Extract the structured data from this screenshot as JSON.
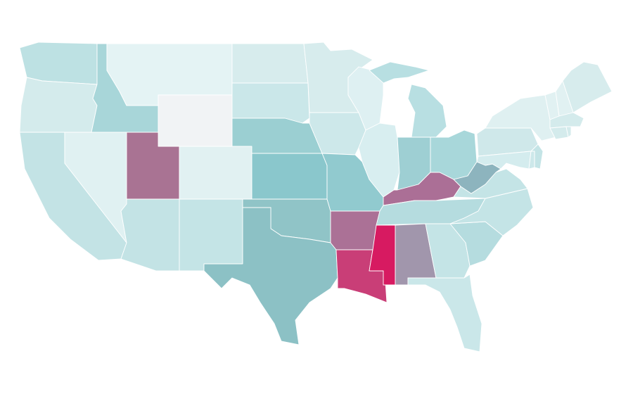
{
  "map": {
    "fills": [
      "#bde1e3",
      "#d4ebec",
      "#c3e3e5",
      "#e0f1f2",
      "#a8d6d9",
      "#e4f3f4",
      "#f1f3f5",
      "#a97393",
      "#e1f1f2",
      "#c3e3e5",
      "#c4e4e6",
      "#d7eced",
      "#cae7e9",
      "#9bcfd2",
      "#8ac7cc",
      "#90c4c7",
      "#8cc1c5",
      "#d7eced",
      "#cde8ea",
      "#91cacf",
      "#ab7196",
      "#c93e77",
      "#def0f2",
      "#d8eef0",
      "#b8dfe2",
      "#9ecfd3",
      "#a8d7da",
      "#ab6f96",
      "#b5dcdf",
      "#d71a61",
      "#a196ac",
      "#c4e4e6",
      "#cae7e9",
      "#b5dcdf",
      "#c4e4e6",
      "#c4e4e6",
      "#8db4be",
      "#cfe8ea",
      "#dff0f1",
      "#d4ecee",
      "#c4e4e6",
      "#cde8ea",
      "#e1f1f2",
      "#e1f1f2",
      "#d7eced",
      "#d4ebec",
      "#d4ebec",
      "#d4ebec"
    ]
  }
}
